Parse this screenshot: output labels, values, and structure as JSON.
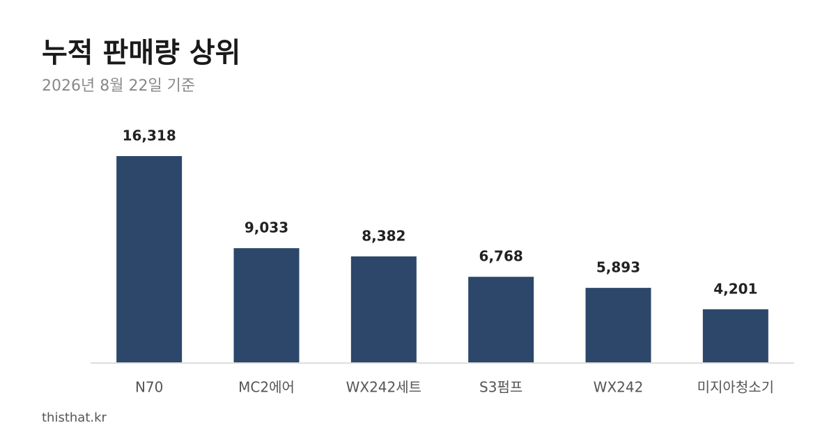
{
  "chart_data": {
    "type": "bar",
    "title": "누적 판매량 상위",
    "subtitle": "2026년 8월 22일 기준",
    "categories": [
      "N70",
      "MC2에어",
      "WX242세트",
      "S3펌프",
      "WX242",
      "미지아청소기"
    ],
    "values": [
      16318,
      9033,
      8382,
      6768,
      5893,
      4201
    ],
    "value_labels": [
      "16,318",
      "9,033",
      "8,382",
      "6,768",
      "5,893",
      "4,201"
    ],
    "color": "#2c476a",
    "source": "thisthat.kr"
  }
}
